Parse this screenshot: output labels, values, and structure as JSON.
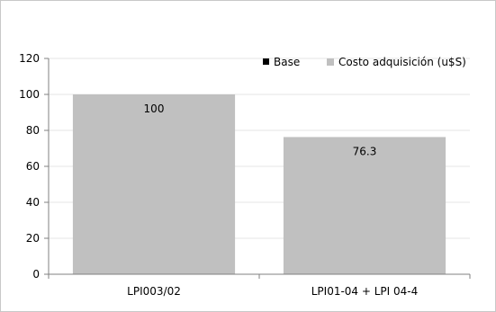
{
  "chart_data": {
    "type": "bar",
    "title": "",
    "xlabel": "",
    "ylabel": "",
    "categories": [
      "LPI003/02",
      "LPI01-04 + LPI 04-4"
    ],
    "series": [
      {
        "name": "Base",
        "color": "#000000",
        "values": [
          0,
          0
        ]
      },
      {
        "name": "Costo adquisición (u$S)",
        "color": "#c0c0c0",
        "values": [
          100,
          76.3
        ]
      }
    ],
    "data_labels": [
      "100",
      "76.3"
    ],
    "ylim": [
      0,
      120
    ],
    "yticks": [
      0,
      20,
      40,
      60,
      80,
      100,
      120
    ],
    "grid": true,
    "legend_position": "top-right",
    "stacked": true
  }
}
